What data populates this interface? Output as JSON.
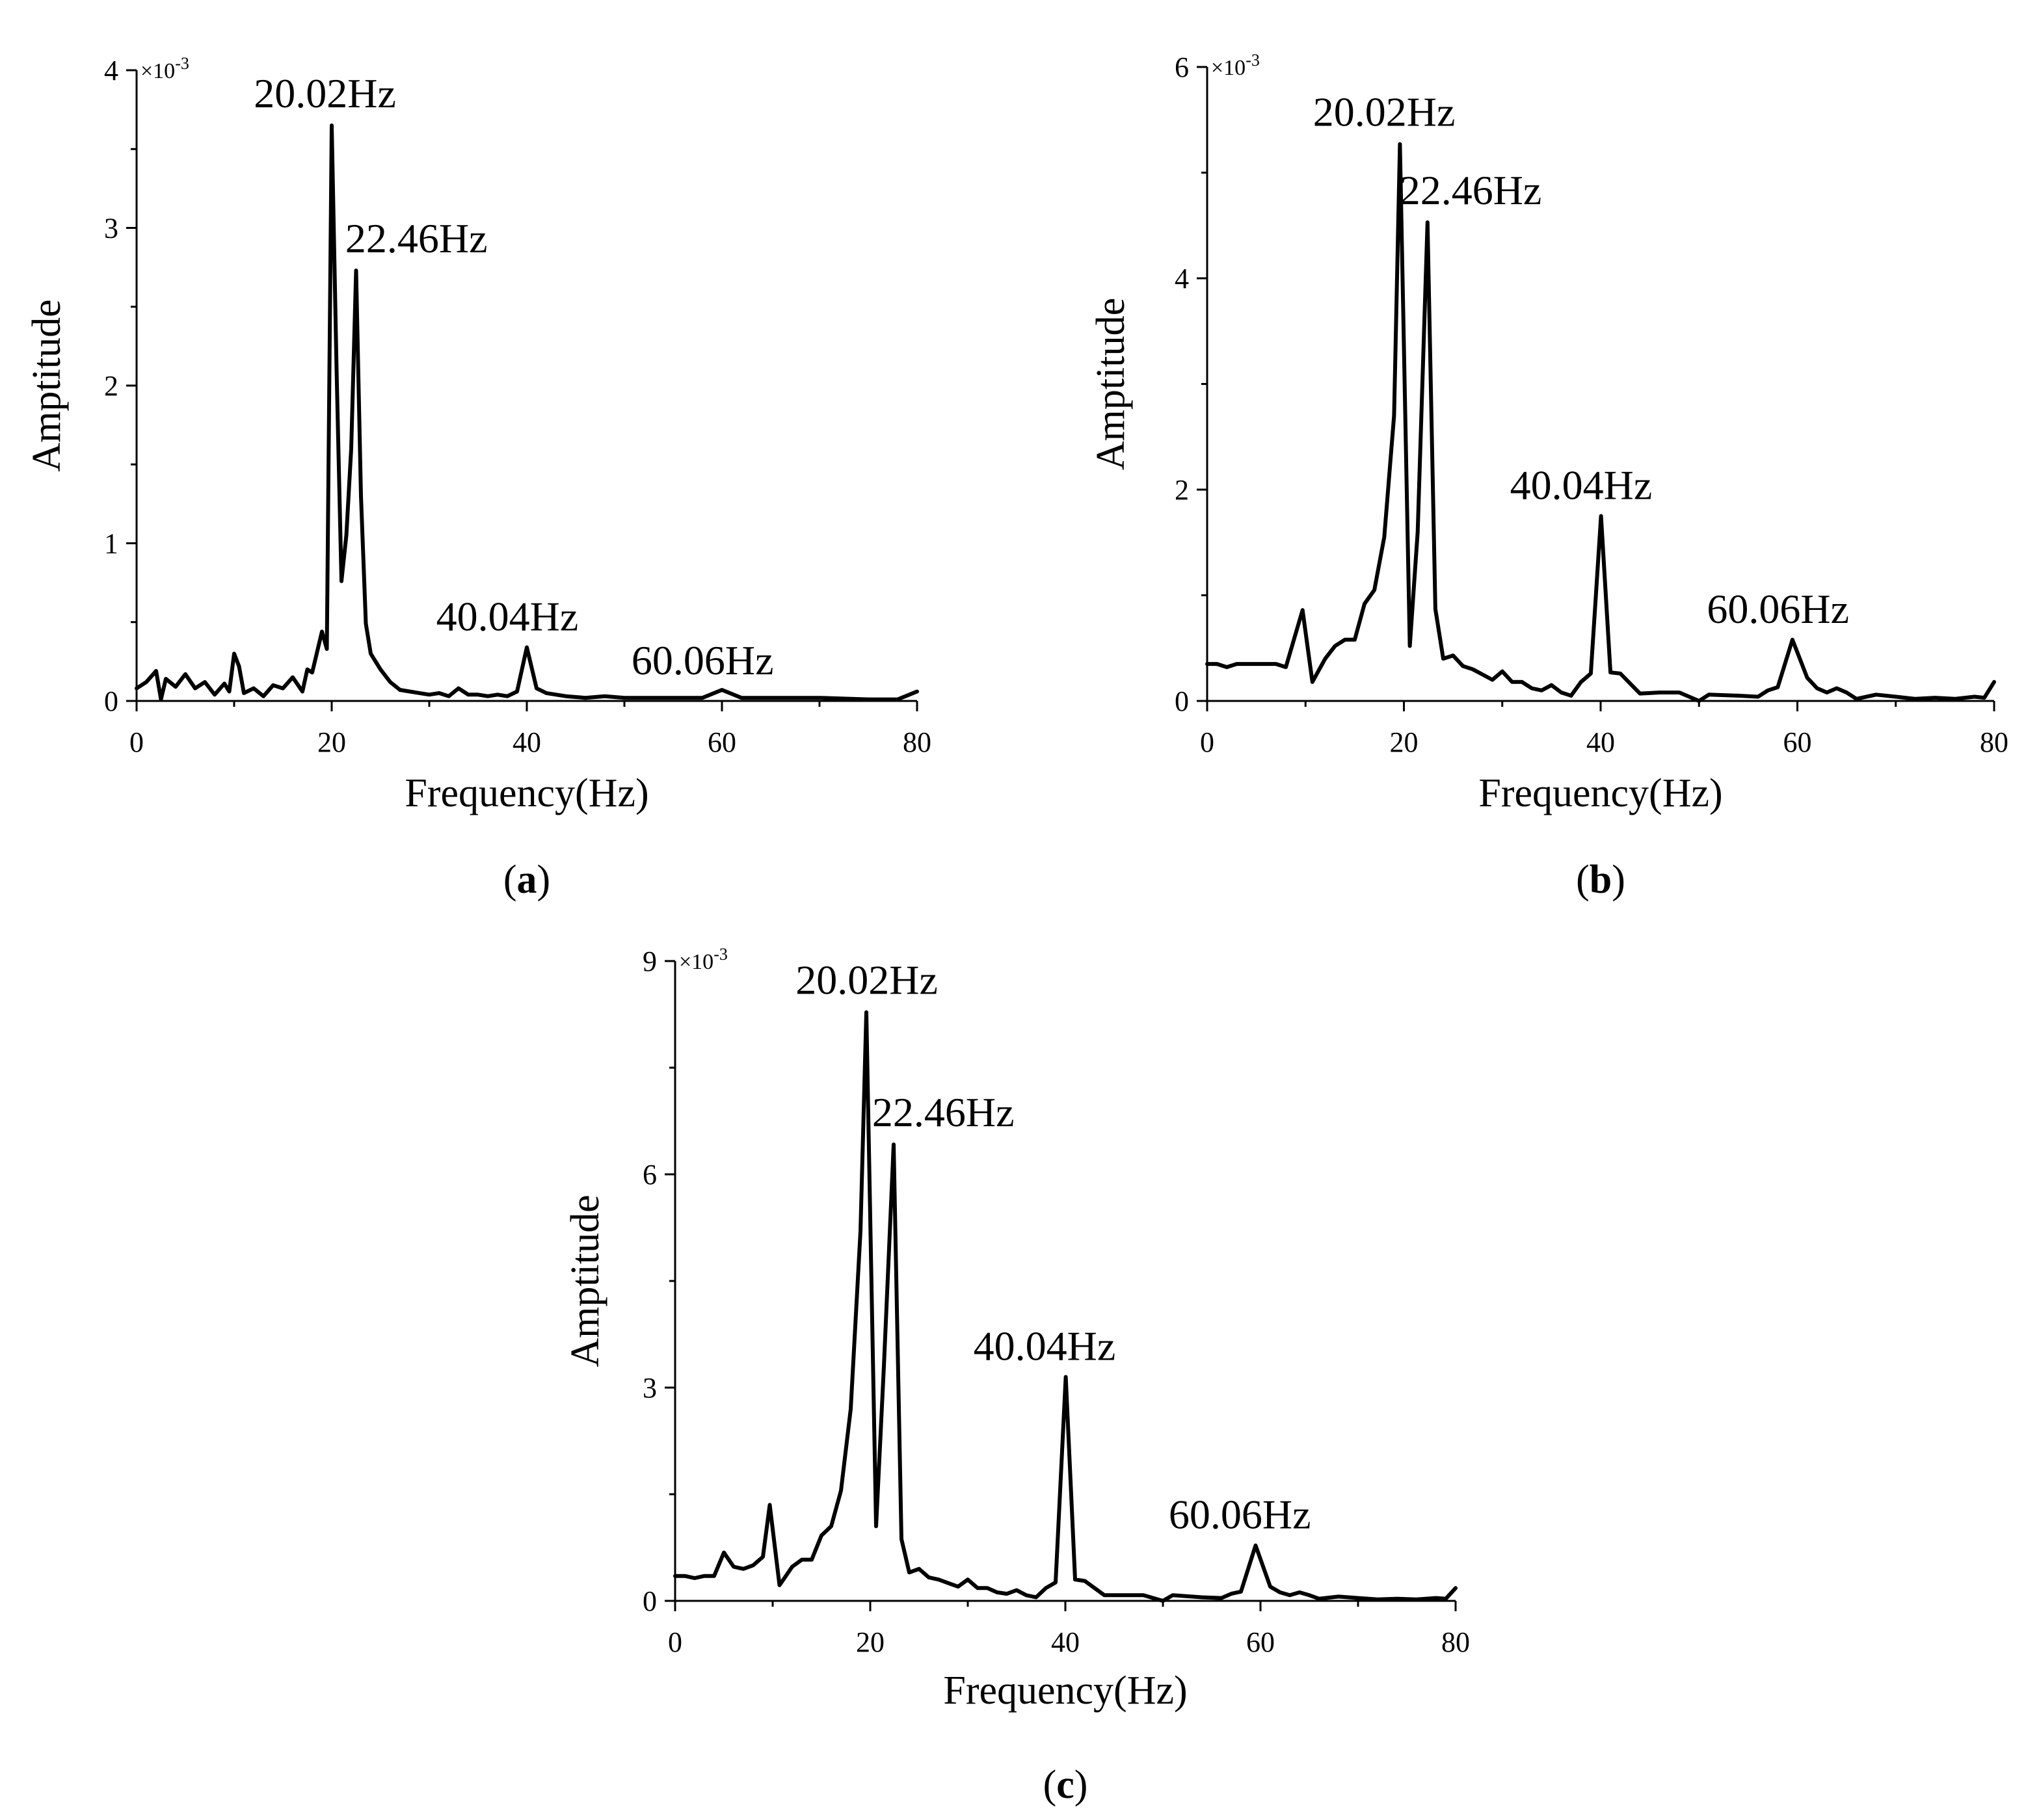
{
  "chart_data": [
    {
      "type": "line",
      "panel_label": "a",
      "xlabel": "Frequency(Hz)",
      "ylabel": "Amptitude",
      "y_exponent_label": "×10",
      "y_exponent_power": "-3",
      "xlim": [
        0,
        80
      ],
      "ylim": [
        0,
        4
      ],
      "xticks": [
        0,
        20,
        40,
        60,
        80
      ],
      "yticks": [
        0,
        1,
        2,
        3,
        4
      ],
      "grid": false,
      "line_color": "#000000",
      "annotations": [
        {
          "text": "20.02Hz",
          "x": 20.02,
          "y": 3.65
        },
        {
          "text": "22.46Hz",
          "x": 22.46,
          "y": 2.73
        },
        {
          "text": "40.04Hz",
          "x": 40.04,
          "y": 0.34
        },
        {
          "text": "60.06Hz",
          "x": 60.06,
          "y": 0.07
        }
      ],
      "series": [
        {
          "x": [
            0,
            1,
            2,
            2.5,
            3,
            4,
            5,
            6,
            7,
            8,
            9,
            9.5,
            10,
            10.5,
            11,
            12,
            13,
            14,
            15,
            16,
            17,
            17.5,
            18,
            18.5,
            19,
            19.5,
            20,
            20.5,
            21,
            21.5,
            22,
            22.5,
            23,
            23.5,
            24,
            25,
            26,
            27,
            28,
            29,
            30,
            31,
            32,
            33,
            34,
            35,
            36,
            37,
            38,
            39,
            40,
            41,
            42,
            44,
            46,
            48,
            50,
            55,
            58,
            60,
            62,
            65,
            70,
            75,
            78,
            80
          ],
          "values": [
            0.08,
            0.12,
            0.19,
            0.01,
            0.14,
            0.09,
            0.17,
            0.08,
            0.12,
            0.04,
            0.11,
            0.06,
            0.3,
            0.22,
            0.05,
            0.08,
            0.03,
            0.1,
            0.08,
            0.15,
            0.06,
            0.2,
            0.18,
            0.31,
            0.44,
            0.33,
            3.65,
            2.1,
            0.76,
            1.05,
            1.6,
            2.73,
            1.3,
            0.49,
            0.3,
            0.2,
            0.12,
            0.07,
            0.06,
            0.05,
            0.04,
            0.05,
            0.03,
            0.08,
            0.04,
            0.04,
            0.03,
            0.04,
            0.03,
            0.06,
            0.34,
            0.08,
            0.05,
            0.03,
            0.02,
            0.03,
            0.02,
            0.02,
            0.02,
            0.07,
            0.02,
            0.02,
            0.02,
            0.01,
            0.01,
            0.06
          ]
        }
      ]
    },
    {
      "type": "line",
      "panel_label": "b",
      "xlabel": "Frequency(Hz)",
      "ylabel": "Amptitude",
      "y_exponent_label": "×10",
      "y_exponent_power": "-3",
      "xlim": [
        0,
        80
      ],
      "ylim": [
        0,
        6
      ],
      "xticks": [
        0,
        20,
        40,
        60,
        80
      ],
      "yticks": [
        0,
        2,
        4,
        6
      ],
      "grid": false,
      "line_color": "#000000",
      "annotations": [
        {
          "text": "20.02Hz",
          "x": 20.02,
          "y": 5.27
        },
        {
          "text": "22.46Hz",
          "x": 22.46,
          "y": 4.53
        },
        {
          "text": "40.04Hz",
          "x": 40.04,
          "y": 1.75
        },
        {
          "text": "60.06Hz",
          "x": 60.06,
          "y": 0.58
        }
      ],
      "series": [
        {
          "x": [
            0,
            1,
            2,
            3,
            4,
            5,
            6,
            7,
            8,
            9.7,
            10.7,
            12,
            13,
            14,
            15,
            16,
            17,
            18,
            19,
            19.6,
            20.6,
            21.4,
            22.4,
            23.2,
            24,
            25,
            26,
            27,
            28,
            29,
            30,
            31,
            32,
            33,
            34,
            35,
            36,
            37,
            38,
            39,
            40.04,
            41,
            42,
            44,
            46,
            48,
            50,
            51,
            54,
            56,
            57,
            58,
            59.5,
            61,
            62,
            63,
            64,
            65,
            66,
            68,
            70,
            72,
            74,
            76,
            78,
            79,
            80
          ],
          "values": [
            0.35,
            0.35,
            0.32,
            0.35,
            0.35,
            0.35,
            0.35,
            0.35,
            0.32,
            0.86,
            0.18,
            0.4,
            0.52,
            0.58,
            0.58,
            0.92,
            1.05,
            1.55,
            2.7,
            5.27,
            0.52,
            1.6,
            4.53,
            0.87,
            0.4,
            0.43,
            0.33,
            0.3,
            0.25,
            0.2,
            0.28,
            0.18,
            0.18,
            0.12,
            0.1,
            0.15,
            0.08,
            0.05,
            0.18,
            0.26,
            1.75,
            0.27,
            0.26,
            0.07,
            0.08,
            0.08,
            0.0,
            0.06,
            0.05,
            0.04,
            0.1,
            0.13,
            0.58,
            0.22,
            0.12,
            0.08,
            0.12,
            0.08,
            0.02,
            0.06,
            0.04,
            0.02,
            0.03,
            0.02,
            0.04,
            0.03,
            0.18
          ]
        }
      ]
    },
    {
      "type": "line",
      "panel_label": "c",
      "xlabel": "Frequency(Hz)",
      "ylabel": "Amptitude",
      "y_exponent_label": "×10",
      "y_exponent_power": "-3",
      "xlim": [
        0,
        80
      ],
      "ylim": [
        0,
        9
      ],
      "xticks": [
        0,
        20,
        40,
        60,
        80
      ],
      "yticks": [
        0,
        3,
        6,
        9
      ],
      "grid": false,
      "line_color": "#000000",
      "annotations": [
        {
          "text": "20.02Hz",
          "x": 20.02,
          "y": 8.28
        },
        {
          "text": "22.46Hz",
          "x": 22.46,
          "y": 6.42
        },
        {
          "text": "40.04Hz",
          "x": 40.04,
          "y": 3.15
        },
        {
          "text": "60.06Hz",
          "x": 60.06,
          "y": 0.78
        }
      ],
      "series": [
        {
          "x": [
            0,
            1,
            2,
            3,
            4,
            5,
            6,
            7,
            8,
            9,
            9.7,
            10.7,
            12,
            13,
            14,
            15,
            16,
            17,
            18,
            19,
            19.6,
            20.6,
            21.4,
            22.4,
            23.2,
            24,
            25,
            26,
            27,
            28,
            29,
            30,
            31,
            32,
            33,
            34,
            35,
            36,
            37,
            38,
            39,
            40.04,
            41,
            42,
            44,
            46,
            48,
            50,
            51,
            54,
            56,
            57,
            58,
            59.5,
            61,
            62,
            63,
            64,
            65,
            66,
            68,
            70,
            72,
            74,
            76,
            78,
            79,
            80
          ],
          "values": [
            0.35,
            0.35,
            0.32,
            0.35,
            0.35,
            0.68,
            0.48,
            0.45,
            0.5,
            0.62,
            1.35,
            0.22,
            0.48,
            0.58,
            0.58,
            0.92,
            1.05,
            1.55,
            2.7,
            5.2,
            8.28,
            1.05,
            3.3,
            6.42,
            0.87,
            0.4,
            0.45,
            0.33,
            0.3,
            0.25,
            0.2,
            0.3,
            0.18,
            0.18,
            0.12,
            0.1,
            0.15,
            0.08,
            0.05,
            0.18,
            0.26,
            3.15,
            0.3,
            0.28,
            0.08,
            0.08,
            0.08,
            0.0,
            0.08,
            0.05,
            0.04,
            0.1,
            0.13,
            0.78,
            0.2,
            0.12,
            0.08,
            0.12,
            0.08,
            0.03,
            0.06,
            0.04,
            0.02,
            0.03,
            0.02,
            0.04,
            0.03,
            0.18
          ]
        }
      ]
    }
  ]
}
